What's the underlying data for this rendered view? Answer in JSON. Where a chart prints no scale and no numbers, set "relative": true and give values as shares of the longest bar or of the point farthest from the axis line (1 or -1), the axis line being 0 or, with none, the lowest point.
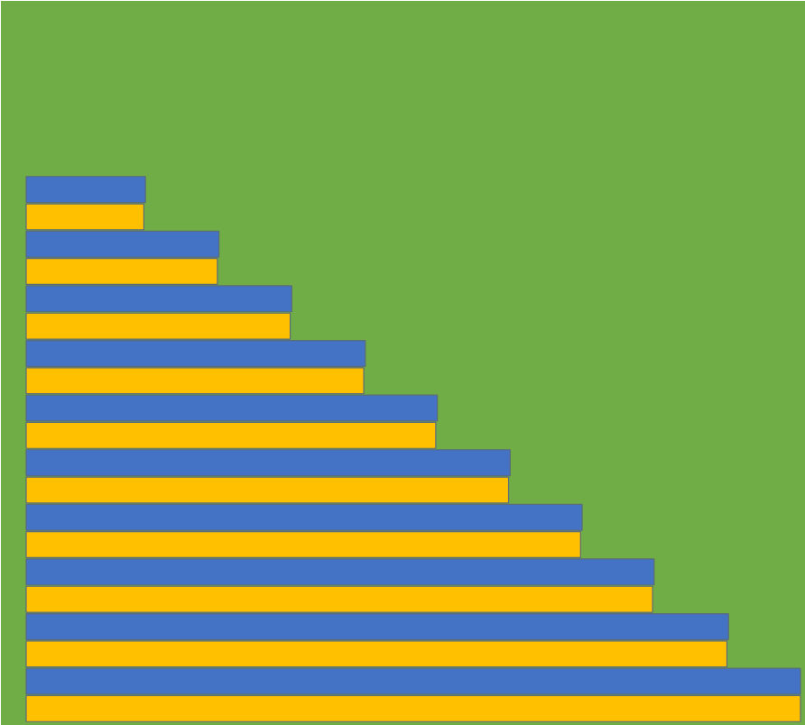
{
  "chart_data": {
    "type": "bar",
    "orientation": "horizontal",
    "relative": true,
    "categories": [
      null,
      null,
      null,
      null,
      null,
      null,
      null,
      null,
      null,
      null
    ],
    "series": [
      {
        "color": "#4472c4",
        "values": [
          0.154,
          0.249,
          0.343,
          0.438,
          0.531,
          0.625,
          0.718,
          0.811,
          0.907,
          1.0
        ]
      },
      {
        "color": "#ffc000",
        "values": [
          0.152,
          0.247,
          0.341,
          0.436,
          0.529,
          0.623,
          0.716,
          0.809,
          0.905,
          1.0
        ]
      }
    ],
    "grid": false
  }
}
